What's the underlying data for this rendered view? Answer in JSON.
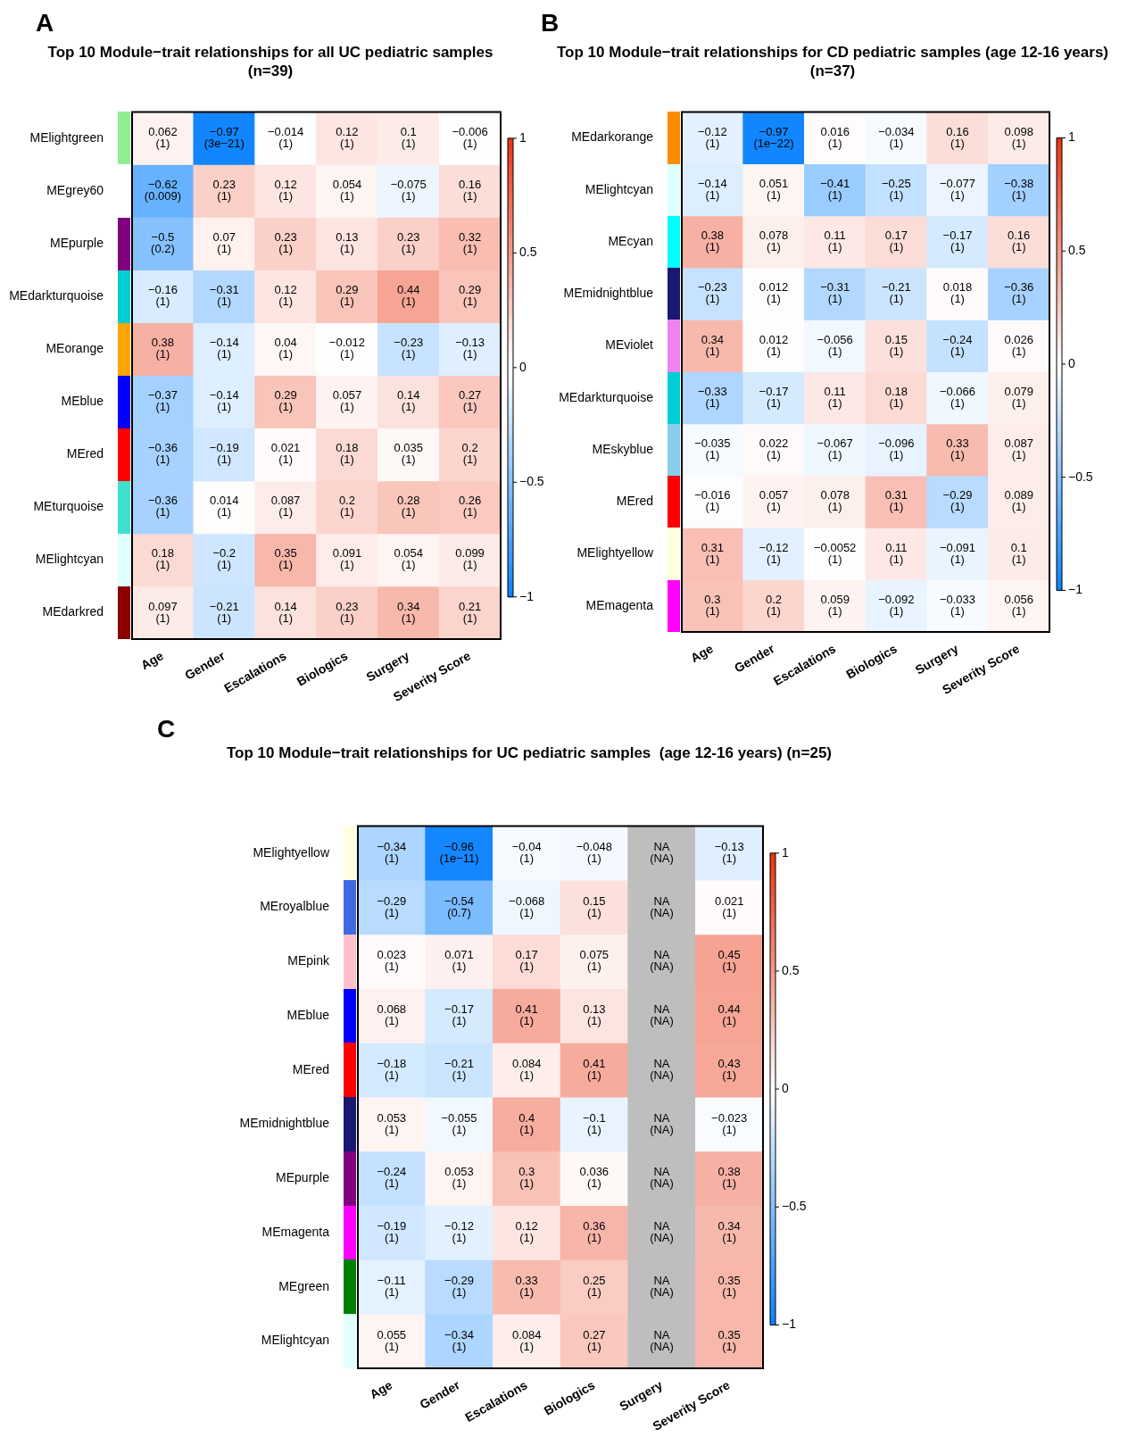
{
  "chart_data": [
    {
      "type": "heatmap",
      "title": "Top 10 Module−trait relationships for all UC pediatric samples\n(n=39)",
      "annotations": [
        "A"
      ],
      "categories": [
        "Age",
        "Gender",
        "Escalations",
        "Biologics",
        "Surgery",
        "Severity Score"
      ],
      "y_categories": [
        "MElightgreen",
        "MEgrey60",
        "MEpurple",
        "MEdarkturquoise",
        "MEorange",
        "MEblue",
        "MEred",
        "MEturquoise",
        "MElightcyan",
        "MEdarkred"
      ],
      "cells": [
        [
          0.062,
          -0.97,
          -0.014,
          0.12,
          0.1,
          -0.006
        ],
        [
          -0.62,
          0.23,
          0.12,
          0.054,
          -0.075,
          0.16
        ],
        [
          -0.5,
          0.07,
          0.23,
          0.13,
          0.23,
          0.32
        ],
        [
          -0.16,
          -0.31,
          0.12,
          0.29,
          0.44,
          0.29
        ],
        [
          0.38,
          -0.14,
          0.04,
          -0.012,
          -0.23,
          -0.13
        ],
        [
          -0.37,
          -0.14,
          0.29,
          0.057,
          0.14,
          0.27
        ],
        [
          -0.36,
          -0.19,
          0.021,
          0.18,
          0.035,
          0.2
        ],
        [
          -0.36,
          0.014,
          0.087,
          0.2,
          0.28,
          0.26
        ],
        [
          0.18,
          -0.2,
          0.35,
          0.091,
          0.054,
          0.099
        ],
        [
          0.097,
          -0.21,
          0.14,
          0.23,
          0.34,
          0.21
        ]
      ],
      "cell_labels": [
        [
          "0.062\n(1)",
          "−0.97\n(3e−21)",
          "−0.014\n(1)",
          "0.12\n(1)",
          "0.1\n(1)",
          "−0.006\n(1)"
        ],
        [
          "−0.62\n(0.009)",
          "0.23\n(1)",
          "0.12\n(1)",
          "0.054\n(1)",
          "−0.075\n(1)",
          "0.16\n(1)"
        ],
        [
          "−0.5\n(0.2)",
          "0.07\n(1)",
          "0.23\n(1)",
          "0.13\n(1)",
          "0.23\n(1)",
          "0.32\n(1)"
        ],
        [
          "−0.16\n(1)",
          "−0.31\n(1)",
          "0.12\n(1)",
          "0.29\n(1)",
          "0.44\n(1)",
          "0.29\n(1)"
        ],
        [
          "0.38\n(1)",
          "−0.14\n(1)",
          "0.04\n(1)",
          "−0.012\n(1)",
          "−0.23\n(1)",
          "−0.13\n(1)"
        ],
        [
          "−0.37\n(1)",
          "−0.14\n(1)",
          "0.29\n(1)",
          "0.057\n(1)",
          "0.14\n(1)",
          "0.27\n(1)"
        ],
        [
          "−0.36\n(1)",
          "−0.19\n(1)",
          "0.021\n(1)",
          "0.18\n(1)",
          "0.035\n(1)",
          "0.2\n(1)"
        ],
        [
          "−0.36\n(1)",
          "0.014\n(1)",
          "0.087\n(1)",
          "0.2\n(1)",
          "0.28\n(1)",
          "0.26\n(1)"
        ],
        [
          "0.18\n(1)",
          "−0.2\n(1)",
          "0.35\n(1)",
          "0.091\n(1)",
          "0.054\n(1)",
          "0.099\n(1)"
        ],
        [
          "0.097\n(1)",
          "−0.21\n(1)",
          "0.14\n(1)",
          "0.23\n(1)",
          "0.34\n(1)",
          "0.21\n(1)"
        ]
      ],
      "clim": [
        -1,
        1
      ],
      "cticks": [
        -1,
        -0.5,
        0,
        0.5,
        1
      ]
    },
    {
      "type": "heatmap",
      "title": "Top 10 Module−trait relationships for CD pediatric samples (age 12-16 years)\n(n=37)",
      "annotations": [
        "B"
      ],
      "categories": [
        "Age",
        "Gender",
        "Escalations",
        "Biologics",
        "Surgery",
        "Severity Score"
      ],
      "y_categories": [
        "MEdarkorange",
        "MElightcyan",
        "MEcyan",
        "MEmidnightblue",
        "MEviolet",
        "MEdarkturquoise",
        "MEskyblue",
        "MEred",
        "MElightyellow",
        "MEmagenta"
      ],
      "cells": [
        [
          -0.12,
          -0.97,
          0.016,
          -0.034,
          0.16,
          0.098
        ],
        [
          -0.14,
          0.051,
          -0.41,
          -0.25,
          -0.077,
          -0.38
        ],
        [
          0.38,
          0.078,
          0.11,
          0.17,
          -0.17,
          0.16
        ],
        [
          -0.23,
          0.012,
          -0.31,
          -0.21,
          0.018,
          -0.36
        ],
        [
          0.34,
          0.012,
          -0.056,
          0.15,
          -0.24,
          0.026
        ],
        [
          -0.33,
          -0.17,
          0.11,
          0.18,
          -0.066,
          0.079
        ],
        [
          -0.035,
          0.022,
          -0.067,
          -0.096,
          0.33,
          0.087
        ],
        [
          -0.016,
          0.057,
          0.078,
          0.31,
          -0.29,
          0.089
        ],
        [
          0.31,
          -0.12,
          -0.0052,
          0.11,
          -0.091,
          0.1
        ],
        [
          0.3,
          0.2,
          0.059,
          -0.092,
          -0.033,
          0.056
        ]
      ],
      "cell_labels": [
        [
          "−0.12\n(1)",
          "−0.97\n(1e−22)",
          "0.016\n(1)",
          "−0.034\n(1)",
          "0.16\n(1)",
          "0.098\n(1)"
        ],
        [
          "−0.14\n(1)",
          "0.051\n(1)",
          "−0.41\n(1)",
          "−0.25\n(1)",
          "−0.077\n(1)",
          "−0.38\n(1)"
        ],
        [
          "0.38\n(1)",
          "0.078\n(1)",
          "0.11\n(1)",
          "0.17\n(1)",
          "−0.17\n(1)",
          "0.16\n(1)"
        ],
        [
          "−0.23\n(1)",
          "0.012\n(1)",
          "−0.31\n(1)",
          "−0.21\n(1)",
          "0.018\n(1)",
          "−0.36\n(1)"
        ],
        [
          "0.34\n(1)",
          "0.012\n(1)",
          "−0.056\n(1)",
          "0.15\n(1)",
          "−0.24\n(1)",
          "0.026\n(1)"
        ],
        [
          "−0.33\n(1)",
          "−0.17\n(1)",
          "0.11\n(1)",
          "0.18\n(1)",
          "−0.066\n(1)",
          "0.079\n(1)"
        ],
        [
          "−0.035\n(1)",
          "0.022\n(1)",
          "−0.067\n(1)",
          "−0.096\n(1)",
          "0.33\n(1)",
          "0.087\n(1)"
        ],
        [
          "−0.016\n(1)",
          "0.057\n(1)",
          "0.078\n(1)",
          "0.31\n(1)",
          "−0.29\n(1)",
          "0.089\n(1)"
        ],
        [
          "0.31\n(1)",
          "−0.12\n(1)",
          "−0.0052\n(1)",
          "0.11\n(1)",
          "−0.091\n(1)",
          "0.1\n(1)"
        ],
        [
          "0.3\n(1)",
          "0.2\n(1)",
          "0.059\n(1)",
          "−0.092\n(1)",
          "−0.033\n(1)",
          "0.056\n(1)"
        ]
      ],
      "clim": [
        -1,
        1
      ],
      "cticks": [
        -1,
        -0.5,
        0,
        0.5,
        1
      ]
    },
    {
      "type": "heatmap",
      "title": "Top 10 Module−trait relationships for UC pediatric samples  (age 12-16 years) (n=25)",
      "annotations": [
        "C"
      ],
      "categories": [
        "Age",
        "Gender",
        "Escalations",
        "Biologics",
        "Surgery",
        "Severity Score"
      ],
      "y_categories": [
        "MElightyellow",
        "MEroyalblue",
        "MEpink",
        "MEblue",
        "MEred",
        "MEmidnightblue",
        "MEpurple",
        "MEmagenta",
        "MEgreen",
        "MElightcyan"
      ],
      "cells": [
        [
          -0.34,
          -0.96,
          -0.04,
          -0.048,
          null,
          -0.13
        ],
        [
          -0.29,
          -0.54,
          -0.068,
          0.15,
          null,
          0.021
        ],
        [
          0.023,
          0.071,
          0.17,
          0.075,
          null,
          0.45
        ],
        [
          0.068,
          -0.17,
          0.41,
          0.13,
          null,
          0.44
        ],
        [
          -0.18,
          -0.21,
          0.084,
          0.41,
          null,
          0.43
        ],
        [
          0.053,
          -0.055,
          0.4,
          -0.1,
          null,
          -0.023
        ],
        [
          -0.24,
          0.053,
          0.3,
          0.036,
          null,
          0.38
        ],
        [
          -0.19,
          -0.12,
          0.12,
          0.36,
          null,
          0.34
        ],
        [
          -0.11,
          -0.29,
          0.33,
          0.25,
          null,
          0.35
        ],
        [
          0.055,
          -0.34,
          0.084,
          0.27,
          null,
          0.35
        ]
      ],
      "cell_labels": [
        [
          "−0.34\n(1)",
          "−0.96\n(1e−11)",
          "−0.04\n(1)",
          "−0.048\n(1)",
          "NA\n(NA)",
          "−0.13\n(1)"
        ],
        [
          "−0.29\n(1)",
          "−0.54\n(0.7)",
          "−0.068\n(1)",
          "0.15\n(1)",
          "NA\n(NA)",
          "0.021\n(1)"
        ],
        [
          "0.023\n(1)",
          "0.071\n(1)",
          "0.17\n(1)",
          "0.075\n(1)",
          "NA\n(NA)",
          "0.45\n(1)"
        ],
        [
          "0.068\n(1)",
          "−0.17\n(1)",
          "0.41\n(1)",
          "0.13\n(1)",
          "NA\n(NA)",
          "0.44\n(1)"
        ],
        [
          "−0.18\n(1)",
          "−0.21\n(1)",
          "0.084\n(1)",
          "0.41\n(1)",
          "NA\n(NA)",
          "0.43\n(1)"
        ],
        [
          "0.053\n(1)",
          "−0.055\n(1)",
          "0.4\n(1)",
          "−0.1\n(1)",
          "NA\n(NA)",
          "−0.023\n(1)"
        ],
        [
          "−0.24\n(1)",
          "0.053\n(1)",
          "0.3\n(1)",
          "0.036\n(1)",
          "NA\n(NA)",
          "0.38\n(1)"
        ],
        [
          "−0.19\n(1)",
          "−0.12\n(1)",
          "0.12\n(1)",
          "0.36\n(1)",
          "NA\n(NA)",
          "0.34\n(1)"
        ],
        [
          "−0.11\n(1)",
          "−0.29\n(1)",
          "0.33\n(1)",
          "0.25\n(1)",
          "NA\n(NA)",
          "0.35\n(1)"
        ],
        [
          "0.055\n(1)",
          "−0.34\n(1)",
          "0.084\n(1)",
          "0.27\n(1)",
          "NA\n(NA)",
          "0.35\n(1)"
        ]
      ],
      "clim": [
        -1,
        1
      ],
      "cticks": [
        -1,
        -0.5,
        0,
        0.5,
        1
      ]
    }
  ]
}
